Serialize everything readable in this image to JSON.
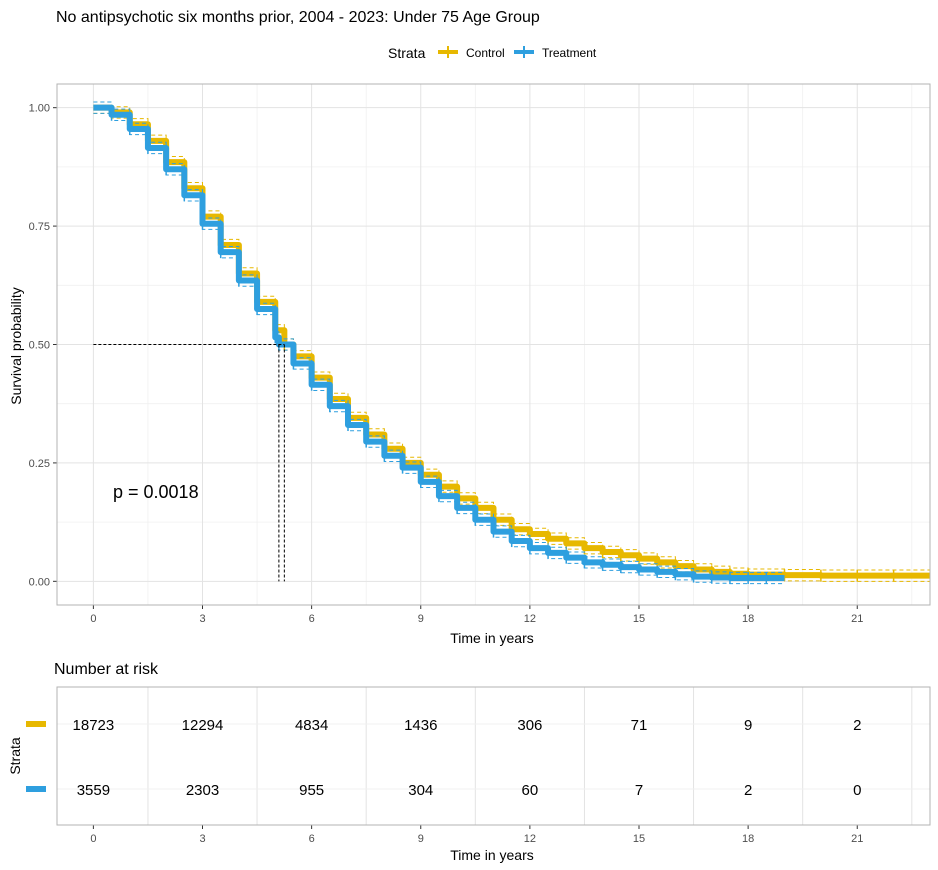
{
  "chart_data": {
    "type": "line",
    "title": "No antipsychotic six months prior, 2004 - 2023: Under 75 Age Group",
    "xlabel": "Time in years",
    "ylabel": "Survival probability",
    "xlim": [
      -1,
      23
    ],
    "ylim": [
      -0.05,
      1.05
    ],
    "x_ticks": [
      0,
      3,
      6,
      9,
      12,
      15,
      18,
      21
    ],
    "x_tick_labels": [
      "0",
      "3",
      "6",
      "9",
      "12",
      "15",
      "18",
      "21"
    ],
    "y_ticks": [
      0,
      0.25,
      0.5,
      0.75,
      1
    ],
    "y_tick_labels": [
      "0.00",
      "0.25",
      "0.50",
      "0.75",
      "1.00"
    ],
    "legend": {
      "title": "Strata",
      "position": "top"
    },
    "annotation": "p = 0.0018",
    "median_survival": {
      "y": 0.5,
      "x": [
        5.1,
        5.25
      ]
    },
    "series": [
      {
        "name": "Control",
        "color": "#E7B800",
        "x": [
          0,
          0.5,
          1,
          1.5,
          2,
          2.5,
          3,
          3.5,
          4,
          4.5,
          5,
          5.25,
          5.5,
          6,
          6.5,
          7,
          7.5,
          8,
          8.5,
          9,
          9.5,
          10,
          10.5,
          11,
          11.5,
          12,
          12.5,
          13,
          13.5,
          14,
          14.5,
          15,
          15.5,
          16,
          16.5,
          17,
          17.5,
          18,
          19,
          20,
          21,
          22,
          23
        ],
        "y": [
          1.0,
          0.99,
          0.965,
          0.93,
          0.885,
          0.83,
          0.77,
          0.71,
          0.65,
          0.59,
          0.53,
          0.5,
          0.475,
          0.43,
          0.385,
          0.345,
          0.31,
          0.28,
          0.25,
          0.225,
          0.2,
          0.175,
          0.155,
          0.13,
          0.11,
          0.1,
          0.09,
          0.08,
          0.07,
          0.062,
          0.055,
          0.048,
          0.04,
          0.032,
          0.025,
          0.02,
          0.016,
          0.014,
          0.013,
          0.012,
          0.012,
          0.012,
          0.012
        ]
      },
      {
        "name": "Treatment",
        "color": "#2E9FDF",
        "x": [
          0,
          0.5,
          1,
          1.5,
          2,
          2.5,
          3,
          3.5,
          4,
          4.5,
          5,
          5.1,
          5.5,
          6,
          6.5,
          7,
          7.5,
          8,
          8.5,
          9,
          9.5,
          10,
          10.5,
          11,
          11.5,
          12,
          12.5,
          13,
          13.5,
          14,
          14.5,
          15,
          15.5,
          16,
          16.5,
          17,
          17.5,
          18,
          18.5,
          19
        ],
        "y": [
          1.0,
          0.985,
          0.955,
          0.915,
          0.87,
          0.815,
          0.755,
          0.695,
          0.635,
          0.575,
          0.515,
          0.5,
          0.46,
          0.415,
          0.37,
          0.33,
          0.295,
          0.265,
          0.24,
          0.21,
          0.18,
          0.155,
          0.13,
          0.105,
          0.085,
          0.07,
          0.06,
          0.05,
          0.04,
          0.035,
          0.03,
          0.025,
          0.02,
          0.015,
          0.01,
          0.008,
          0.007,
          0.007,
          0.007,
          0.007
        ]
      }
    ],
    "risk_table": {
      "title": "Number at risk",
      "y_title": "Strata",
      "xlabel": "Time in years",
      "times": [
        0,
        3,
        6,
        9,
        12,
        15,
        18,
        21
      ],
      "rows": [
        {
          "name": "Control",
          "color": "#E7B800",
          "values": [
            "18723",
            "12294",
            "4834",
            "1436",
            "306",
            "71",
            "9",
            "2"
          ]
        },
        {
          "name": "Treatment",
          "color": "#2E9FDF",
          "values": [
            "3559",
            "2303",
            "955",
            "304",
            "60",
            "7",
            "2",
            "0"
          ]
        }
      ]
    }
  }
}
